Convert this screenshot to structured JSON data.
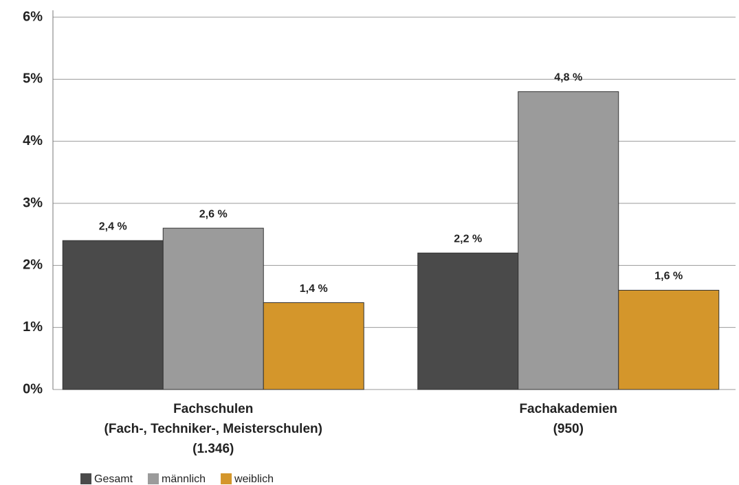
{
  "chart_data": {
    "type": "bar",
    "categories": [
      [
        "Fachschulen",
        "(Fach-, Techniker-, Meisterschulen)",
        "(1.346)"
      ],
      [
        "Fachakademien",
        "(950)"
      ]
    ],
    "series": [
      {
        "name": "Gesamt",
        "color": "#4a4a4a",
        "values": [
          2.4,
          2.2
        ],
        "value_labels": [
          "2,4 %",
          "2,2 %"
        ]
      },
      {
        "name": "männlich",
        "color": "#9b9b9b",
        "values": [
          2.6,
          4.8
        ],
        "value_labels": [
          "2,6 %",
          "4,8 %"
        ]
      },
      {
        "name": "weiblich",
        "color": "#d4962b",
        "values": [
          1.4,
          1.6
        ],
        "value_labels": [
          "1,4 %",
          "1,6 %"
        ]
      }
    ],
    "ylim": [
      0,
      6
    ],
    "yticks": [
      {
        "value": 0,
        "label": "0%"
      },
      {
        "value": 1,
        "label": "1%"
      },
      {
        "value": 2,
        "label": "2%"
      },
      {
        "value": 3,
        "label": "3%"
      },
      {
        "value": 4,
        "label": "4%"
      },
      {
        "value": 5,
        "label": "5%"
      },
      {
        "value": 6,
        "label": "6%"
      }
    ],
    "grid": true,
    "legend": "bottom-left"
  }
}
